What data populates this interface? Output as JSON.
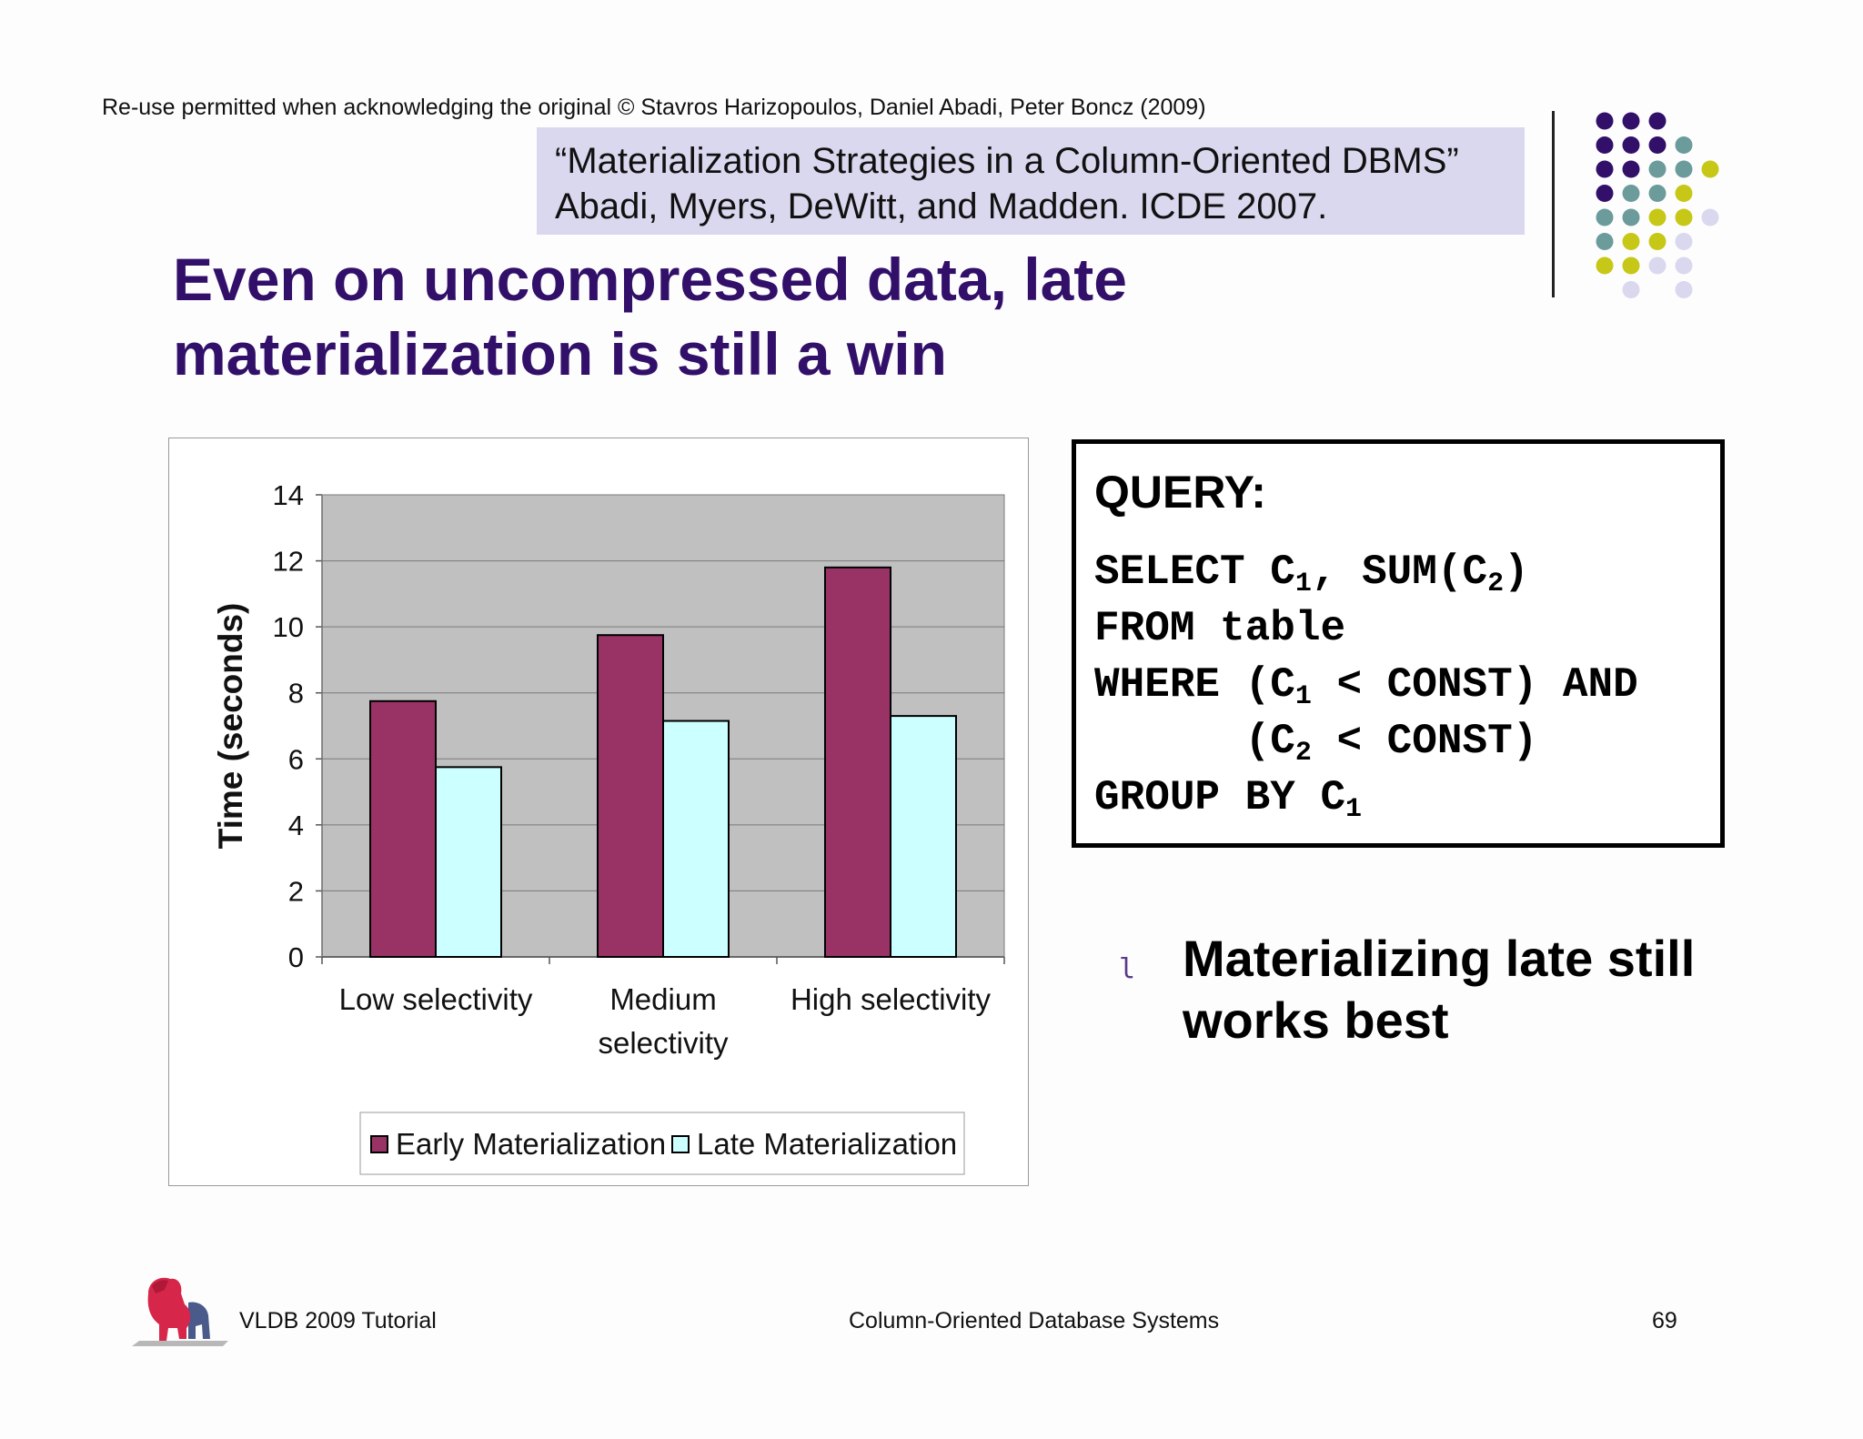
{
  "header": {
    "copyright": "Re-use permitted when acknowledging the original © Stavros Harizopoulos, Daniel Abadi, Peter Boncz (2009)",
    "citation_line1": "“Materialization Strategies in a Column-Oriented DBMS”",
    "citation_line2": "Abadi, Myers, DeWitt, and Madden. ICDE 2007."
  },
  "title": {
    "line1": "Even on uncompressed data, late",
    "line2": "materialization is still a win"
  },
  "colors": {
    "title": "#32106a",
    "citation_bg": "#d9d8ee",
    "early": "#993366",
    "late": "#ccffff",
    "plot_bg": "#c0c0c0",
    "dots": [
      "#32106a",
      "#6b9b9b",
      "#c7c717",
      "#d9d8ee"
    ]
  },
  "chart_data": {
    "type": "bar",
    "categories": [
      [
        "Low  selectivity"
      ],
      [
        "Medium",
        "selectivity"
      ],
      [
        "High selectivity"
      ]
    ],
    "series": [
      {
        "name": "Early Materialization",
        "color": "#993366",
        "values": [
          7.75,
          9.75,
          11.8
        ]
      },
      {
        "name": "Late Materialization",
        "color": "#ccffff",
        "values": [
          5.75,
          7.15,
          7.3
        ]
      }
    ],
    "ylabel": "Time (seconds)",
    "ylim": [
      0,
      14
    ],
    "yticks": [
      0,
      2,
      4,
      6,
      8,
      10,
      12,
      14
    ],
    "grid": true,
    "legend_position": "bottom"
  },
  "query": {
    "label": "QUERY:",
    "select_kw": "SELECT C",
    "select_sub1": "1",
    "select_mid": ", SUM(C",
    "select_sub2": "2",
    "select_end": ")",
    "from": "FROM table",
    "where_kw": "WHERE (C",
    "where_sub1": "1",
    "where_end": " < CONST) AND",
    "and_kw": "      (C",
    "and_sub2": "2",
    "and_end": " < CONST)",
    "group_kw": "GROUP BY C",
    "group_sub1": "1"
  },
  "bullet": {
    "marker": "l",
    "line1": "Materializing late still",
    "line2": "works best"
  },
  "footer": {
    "left": "VLDB 2009 Tutorial",
    "center": "Column-Oriented Database Systems",
    "page": "69"
  }
}
